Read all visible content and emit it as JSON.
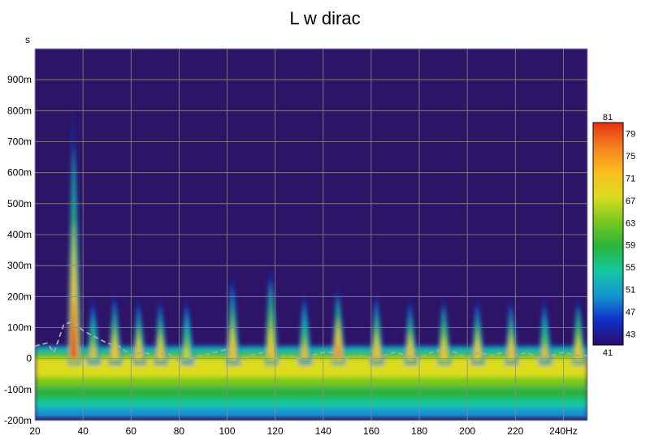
{
  "chart_data": {
    "type": "heatmap",
    "title": "L w dirac",
    "ylabel": "s",
    "xlim": [
      20,
      250
    ],
    "ylim": [
      -0.2,
      1.0
    ],
    "x_ticks": [
      {
        "value": 20,
        "label": "20"
      },
      {
        "value": 40,
        "label": "40"
      },
      {
        "value": 60,
        "label": "60"
      },
      {
        "value": 80,
        "label": "80"
      },
      {
        "value": 100,
        "label": "100"
      },
      {
        "value": 120,
        "label": "120"
      },
      {
        "value": 140,
        "label": "140"
      },
      {
        "value": 160,
        "label": "160"
      },
      {
        "value": 180,
        "label": "180"
      },
      {
        "value": 200,
        "label": "200"
      },
      {
        "value": 220,
        "label": "220"
      },
      {
        "value": 240,
        "label": "240Hz"
      }
    ],
    "y_ticks": [
      {
        "value": 0.9,
        "label": "900m"
      },
      {
        "value": 0.8,
        "label": "800m"
      },
      {
        "value": 0.7,
        "label": "700m"
      },
      {
        "value": 0.6,
        "label": "600m"
      },
      {
        "value": 0.5,
        "label": "500m"
      },
      {
        "value": 0.4,
        "label": "400m"
      },
      {
        "value": 0.3,
        "label": "300m"
      },
      {
        "value": 0.2,
        "label": "200m"
      },
      {
        "value": 0.1,
        "label": "100m"
      },
      {
        "value": 0.0,
        "label": "0"
      },
      {
        "value": -0.1,
        "label": "-100m"
      },
      {
        "value": -0.2,
        "label": "-200m"
      }
    ],
    "grid": true,
    "colorbar": {
      "min": 41,
      "max": 81,
      "min_label": "41",
      "max_label": "81",
      "ticks": [
        {
          "value": 79,
          "label": "79"
        },
        {
          "value": 75,
          "label": "75"
        },
        {
          "value": 71,
          "label": "71"
        },
        {
          "value": 67,
          "label": "67"
        },
        {
          "value": 63,
          "label": "63"
        },
        {
          "value": 59,
          "label": "59"
        },
        {
          "value": 55,
          "label": "55"
        },
        {
          "value": 51,
          "label": "51"
        },
        {
          "value": 47,
          "label": "47"
        },
        {
          "value": 43,
          "label": "43"
        }
      ],
      "colors": [
        "#2a0a6e",
        "#1030c8",
        "#1496d2",
        "#14c8a0",
        "#2ab43c",
        "#78c81e",
        "#dcdc1e",
        "#fabe1e",
        "#f5821e",
        "#e63214"
      ]
    },
    "background_color": "#2e1466",
    "peaks": [
      {
        "freq": 36,
        "level": 81,
        "decay_s": 0.82
      },
      {
        "freq": 44,
        "level": 70,
        "decay_s": 0.2
      },
      {
        "freq": 53,
        "level": 72,
        "decay_s": 0.22
      },
      {
        "freq": 63,
        "level": 72,
        "decay_s": 0.2
      },
      {
        "freq": 72,
        "level": 72,
        "decay_s": 0.2
      },
      {
        "freq": 83,
        "level": 69,
        "decay_s": 0.2
      },
      {
        "freq": 102,
        "level": 71,
        "decay_s": 0.28
      },
      {
        "freq": 118,
        "level": 74,
        "decay_s": 0.3
      },
      {
        "freq": 132,
        "level": 70,
        "decay_s": 0.22
      },
      {
        "freq": 146,
        "level": 78,
        "decay_s": 0.24
      },
      {
        "freq": 162,
        "level": 72,
        "decay_s": 0.22
      },
      {
        "freq": 176,
        "level": 71,
        "decay_s": 0.2
      },
      {
        "freq": 190,
        "level": 73,
        "decay_s": 0.2
      },
      {
        "freq": 204,
        "level": 71,
        "decay_s": 0.2
      },
      {
        "freq": 218,
        "level": 72,
        "decay_s": 0.2
      },
      {
        "freq": 232,
        "level": 70,
        "decay_s": 0.2
      },
      {
        "freq": 246,
        "level": 73,
        "decay_s": 0.2
      }
    ],
    "decay_curve": {
      "x": [
        20,
        25,
        28,
        32,
        36,
        40,
        45,
        50,
        55,
        60,
        65,
        70,
        75,
        80,
        85,
        90,
        95,
        100,
        105,
        110,
        115,
        120,
        125,
        130,
        135,
        140,
        145,
        150,
        155,
        160,
        165,
        170,
        175,
        180,
        185,
        190,
        195,
        200,
        205,
        210,
        215,
        220,
        225,
        230,
        235,
        240,
        245,
        250
      ],
      "y": [
        0.04,
        0.05,
        0.02,
        0.11,
        0.12,
        0.09,
        0.07,
        0.05,
        0.04,
        0.01,
        0.02,
        0.01,
        0.02,
        -0.01,
        0.0,
        0.01,
        0.02,
        0.03,
        -0.02,
        0.01,
        0.02,
        0.0,
        0.01,
        0.0,
        0.01,
        0.02,
        0.02,
        0.0,
        0.01,
        0.0,
        0.01,
        0.02,
        0.01,
        0.0,
        0.02,
        0.03,
        0.02,
        0.0,
        0.02,
        0.01,
        0.02,
        0.01,
        0.02,
        0.0,
        0.01,
        0.02,
        0.01,
        0.01
      ]
    }
  }
}
